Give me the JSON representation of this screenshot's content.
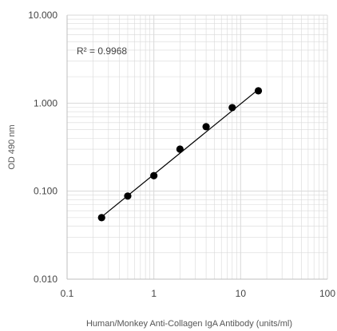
{
  "chart_data": {
    "type": "scatter",
    "xscale": "log",
    "yscale": "log",
    "xlim": [
      0.1,
      100
    ],
    "ylim": [
      0.01,
      10
    ],
    "x_ticks": [
      "0.1",
      "1",
      "10",
      "100"
    ],
    "y_ticks": [
      "0.010",
      "0.100",
      "1.000",
      "10.000"
    ],
    "xlabel": "Human/Monkey Anti-Collagen IgA Antibody (units/ml)",
    "ylabel": "OD 490 nm",
    "annotation": "R² = 0.9968",
    "grid": "major and minor",
    "legend": "none",
    "series": [
      {
        "x": [
          0.25,
          0.5,
          1,
          2,
          4,
          8,
          16
        ],
        "y": [
          0.05,
          0.088,
          0.15,
          0.3,
          0.54,
          0.89,
          1.38
        ]
      }
    ],
    "trendline": {
      "x": [
        0.25,
        16
      ],
      "y": [
        0.051,
        1.43
      ]
    },
    "colors": {
      "marker": "#000000",
      "line": "#000000",
      "grid": "#d9d9d9",
      "axis": "#bfbfbf"
    }
  }
}
